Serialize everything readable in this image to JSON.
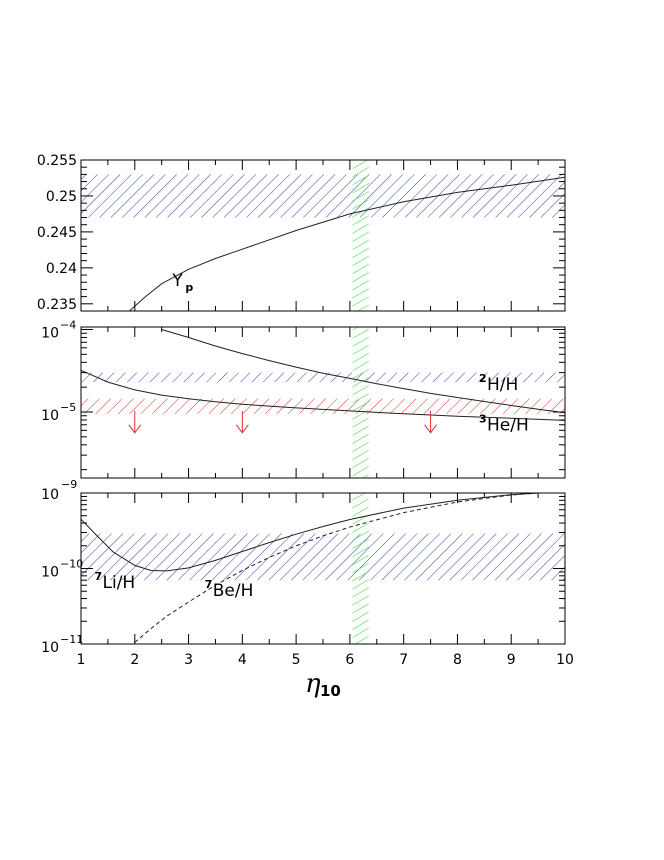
{
  "chart_data": [
    {
      "type": "line",
      "scale": "linear",
      "xlim": [
        1,
        10
      ],
      "ylim": [
        0.234,
        0.255
      ],
      "yticks": [
        "0.235",
        "0.24",
        "0.245",
        "0.25",
        "0.255"
      ],
      "ytick_values": [
        0.235,
        0.24,
        0.245,
        0.25,
        0.255
      ],
      "series": [
        {
          "name": "Yp",
          "x": [
            1.9,
            2.2,
            2.5,
            3,
            3.5,
            4,
            5,
            6,
            7,
            8,
            9,
            10
          ],
          "y": [
            0.234,
            0.236,
            0.2378,
            0.2398,
            0.2413,
            0.2426,
            0.2452,
            0.2475,
            0.2492,
            0.2505,
            0.2515,
            0.2526
          ]
        }
      ],
      "bands": [
        {
          "ymin": 0.247,
          "ymax": 0.253,
          "color": "#3344aa"
        }
      ],
      "labels": [
        {
          "text": "Y",
          "sub": "p",
          "x": 2.7,
          "y": 0.2375
        }
      ]
    },
    {
      "type": "line",
      "scale": "log",
      "xlim": [
        1,
        10
      ],
      "ylim_exp": [
        -5.8,
        -3.97
      ],
      "yticks": [
        {
          "base": "10",
          "exp": "−4",
          "exp_value": -4
        },
        {
          "base": "10",
          "exp": "−5",
          "exp_value": -5
        }
      ],
      "bottom_exp_label": "−9",
      "series": [
        {
          "name": "²H/H",
          "x": [
            2.5,
            3,
            3.5,
            4,
            4.5,
            5,
            5.5,
            6,
            6.5,
            7,
            7.5,
            8,
            8.5,
            9,
            9.5,
            10
          ],
          "y": [
            0.0001,
            8e-05,
            6.3e-05,
            5.1e-05,
            4.2e-05,
            3.5e-05,
            2.95e-05,
            2.55e-05,
            2.2e-05,
            1.92e-05,
            1.68e-05,
            1.5e-05,
            1.34e-05,
            1.2e-05,
            1.08e-05,
            9.8e-06
          ]
        },
        {
          "name": "³He/H",
          "x": [
            1,
            1.5,
            2,
            2.5,
            3,
            3.5,
            4,
            5,
            6,
            7,
            8,
            9,
            10
          ],
          "y": [
            3.2e-05,
            2.3e-05,
            1.85e-05,
            1.6e-05,
            1.45e-05,
            1.33e-05,
            1.24e-05,
            1.12e-05,
            1.03e-05,
            9.5e-06,
            8.9e-06,
            8.4e-06,
            7.9e-06
          ]
        }
      ],
      "bands": [
        {
          "ymin": 2.3e-05,
          "ymax": 3e-05,
          "color": "#3344aa"
        },
        {
          "ymin": 9.5e-06,
          "ymax": 1.45e-05,
          "color": "#e03030"
        }
      ],
      "upper_limit_arrows_x": [
        2,
        4,
        7.5
      ],
      "arrow_y": 9.5e-06,
      "arrow_color": "#e03030",
      "labels": [
        {
          "sup": "2",
          "text": "H/H",
          "x": 8.55,
          "y": 1.85e-05
        },
        {
          "sup": "3",
          "text": "He/H",
          "x": 8.55,
          "y": 6e-06
        }
      ]
    },
    {
      "type": "line",
      "scale": "log",
      "xlim": [
        1,
        10
      ],
      "ylim_exp": [
        -11,
        -9
      ],
      "yticks": [
        {
          "base": "10",
          "exp": "−10",
          "exp_value": -10
        },
        {
          "base": "10",
          "exp": "−11",
          "exp_value": -11
        }
      ],
      "top_label": "10",
      "series": [
        {
          "name": "⁷Li/H",
          "x": [
            1,
            1.3,
            1.6,
            2,
            2.3,
            2.6,
            3,
            3.5,
            4,
            4.5,
            5,
            5.5,
            6,
            7,
            8,
            9,
            9.5,
            10
          ],
          "y": [
            4.5e-10,
            2.7e-10,
            1.65e-10,
            1.1e-10,
            9.4e-11,
            9.3e-11,
            1.02e-10,
            1.28e-10,
            1.68e-10,
            2.2e-10,
            2.85e-10,
            3.6e-10,
            4.45e-10,
            6.3e-10,
            8e-10,
            9.5e-10,
            1e-09,
            1e-09
          ]
        },
        {
          "name": "⁷Be/H",
          "dashed": true,
          "x": [
            2,
            2.3,
            2.6,
            3,
            3.5,
            4,
            4.5,
            5,
            5.5,
            6,
            7,
            8,
            9,
            9.5
          ],
          "y": [
            1.05e-11,
            1.6e-11,
            2.35e-11,
            3.6e-11,
            6e-11,
            9.4e-11,
            1.4e-10,
            2e-10,
            2.7e-10,
            3.55e-10,
            5.5e-10,
            7.6e-10,
            9.4e-10,
            1e-09
          ]
        }
      ],
      "bands": [
        {
          "ymin": 7e-11,
          "ymax": 2.9e-10,
          "color": "#3344aa"
        }
      ],
      "labels": [
        {
          "sup": "7",
          "text": "Li/H",
          "x": 1.4,
          "y": 5.5e-11
        },
        {
          "sup": "7",
          "text": "Be/H",
          "x": 3.45,
          "y": 4.3e-11
        }
      ]
    }
  ],
  "x_axis": {
    "ticks": [
      1,
      2,
      3,
      4,
      5,
      6,
      7,
      8,
      9,
      10
    ],
    "label_main": "η",
    "label_sub": "10"
  },
  "vertical_band": {
    "xmin": 6.05,
    "xmax": 6.35,
    "color": "#44dd44"
  }
}
